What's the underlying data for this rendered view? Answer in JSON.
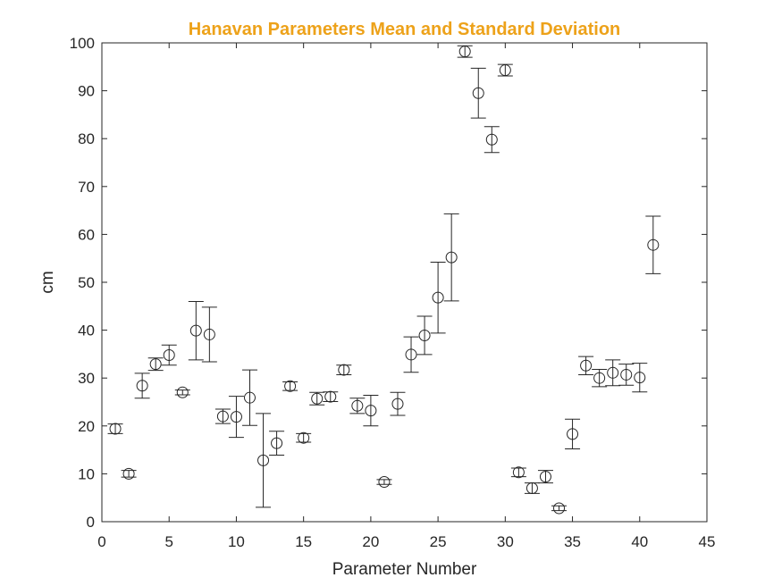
{
  "chart_data": {
    "type": "scatter",
    "title": "Hanavan Parameters Mean and Standard Deviation",
    "xlabel": "Parameter Number",
    "ylabel": "cm",
    "xlim": [
      0,
      45
    ],
    "ylim": [
      0,
      100
    ],
    "xticks": [
      0,
      5,
      10,
      15,
      20,
      25,
      30,
      35,
      40,
      45
    ],
    "yticks": [
      0,
      10,
      20,
      30,
      40,
      50,
      60,
      70,
      80,
      90,
      100
    ],
    "grid": false,
    "marker": "open-circle",
    "colors": {
      "title": "#EDA21A",
      "data": "#262626",
      "axis": "#262626"
    },
    "points": [
      {
        "x": 1,
        "y": 19.4,
        "err": 1.0
      },
      {
        "x": 2,
        "y": 10.0,
        "err": 0.7
      },
      {
        "x": 3,
        "y": 28.4,
        "err": 2.6
      },
      {
        "x": 4,
        "y": 32.9,
        "err": 1.3
      },
      {
        "x": 5,
        "y": 34.8,
        "err": 2.1
      },
      {
        "x": 6,
        "y": 27.0,
        "err": 0.5
      },
      {
        "x": 7,
        "y": 39.9,
        "err": 6.1
      },
      {
        "x": 8,
        "y": 39.1,
        "err": 5.7
      },
      {
        "x": 9,
        "y": 22.0,
        "err": 1.5
      },
      {
        "x": 10,
        "y": 21.9,
        "err": 4.3
      },
      {
        "x": 11,
        "y": 25.9,
        "err": 5.8
      },
      {
        "x": 12,
        "y": 12.8,
        "err": 9.8
      },
      {
        "x": 13,
        "y": 16.4,
        "err": 2.5
      },
      {
        "x": 14,
        "y": 28.3,
        "err": 0.9
      },
      {
        "x": 15,
        "y": 17.5,
        "err": 0.9
      },
      {
        "x": 16,
        "y": 25.7,
        "err": 1.3
      },
      {
        "x": 17,
        "y": 26.1,
        "err": 1.0
      },
      {
        "x": 18,
        "y": 31.7,
        "err": 1.0
      },
      {
        "x": 19,
        "y": 24.2,
        "err": 1.6
      },
      {
        "x": 20,
        "y": 23.2,
        "err": 3.2
      },
      {
        "x": 21,
        "y": 8.3,
        "err": 0.5
      },
      {
        "x": 22,
        "y": 24.6,
        "err": 2.4
      },
      {
        "x": 23,
        "y": 34.9,
        "err": 3.7
      },
      {
        "x": 24,
        "y": 38.9,
        "err": 4.0
      },
      {
        "x": 25,
        "y": 46.8,
        "err": 7.4
      },
      {
        "x": 26,
        "y": 55.2,
        "err": 9.1
      },
      {
        "x": 27,
        "y": 98.2,
        "err": 1.2
      },
      {
        "x": 28,
        "y": 89.5,
        "err": 5.2
      },
      {
        "x": 29,
        "y": 79.8,
        "err": 2.7
      },
      {
        "x": 30,
        "y": 94.3,
        "err": 1.2
      },
      {
        "x": 31,
        "y": 10.3,
        "err": 0.9
      },
      {
        "x": 32,
        "y": 7.0,
        "err": 1.1
      },
      {
        "x": 33,
        "y": 9.4,
        "err": 1.3
      },
      {
        "x": 34,
        "y": 2.8,
        "err": 0.5
      },
      {
        "x": 35,
        "y": 18.3,
        "err": 3.1
      },
      {
        "x": 36,
        "y": 32.6,
        "err": 1.9
      },
      {
        "x": 37,
        "y": 30.0,
        "err": 1.8
      },
      {
        "x": 38,
        "y": 31.1,
        "err": 2.7
      },
      {
        "x": 39,
        "y": 30.7,
        "err": 2.2
      },
      {
        "x": 40,
        "y": 30.1,
        "err": 3.0
      },
      {
        "x": 41,
        "y": 57.8,
        "err": 6.0
      }
    ]
  }
}
